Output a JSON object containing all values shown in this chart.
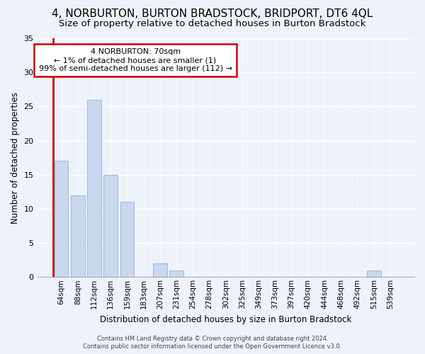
{
  "title": "4, NORBURTON, BURTON BRADSTOCK, BRIDPORT, DT6 4QL",
  "subtitle": "Size of property relative to detached houses in Burton Bradstock",
  "xlabel": "Distribution of detached houses by size in Burton Bradstock",
  "ylabel": "Number of detached properties",
  "bar_labels": [
    "64sqm",
    "88sqm",
    "112sqm",
    "136sqm",
    "159sqm",
    "183sqm",
    "207sqm",
    "231sqm",
    "254sqm",
    "278sqm",
    "302sqm",
    "325sqm",
    "349sqm",
    "373sqm",
    "397sqm",
    "420sqm",
    "444sqm",
    "468sqm",
    "492sqm",
    "515sqm",
    "539sqm"
  ],
  "bar_values": [
    17,
    12,
    26,
    15,
    11,
    0,
    2,
    1,
    0,
    0,
    0,
    0,
    0,
    0,
    0,
    0,
    0,
    0,
    0,
    1,
    0
  ],
  "bar_color": "#c8d8ee",
  "bar_edge_color": "#9ab0cc",
  "annotation_text": "4 NORBURTON: 70sqm\n← 1% of detached houses are smaller (1)\n99% of semi-detached houses are larger (112) →",
  "annotation_box_edge": "#cc0000",
  "red_line_color": "#cc0000",
  "ylim": [
    0,
    35
  ],
  "yticks": [
    0,
    5,
    10,
    15,
    20,
    25,
    30,
    35
  ],
  "footer_line1": "Contains HM Land Registry data © Crown copyright and database right 2024.",
  "footer_line2": "Contains public sector information licensed under the Open Government Licence v3.0.",
  "background_color": "#eef2fb",
  "grid_color": "#ffffff",
  "title_fontsize": 11,
  "subtitle_fontsize": 9.5,
  "axis_label_fontsize": 8.5,
  "tick_fontsize": 7.5
}
